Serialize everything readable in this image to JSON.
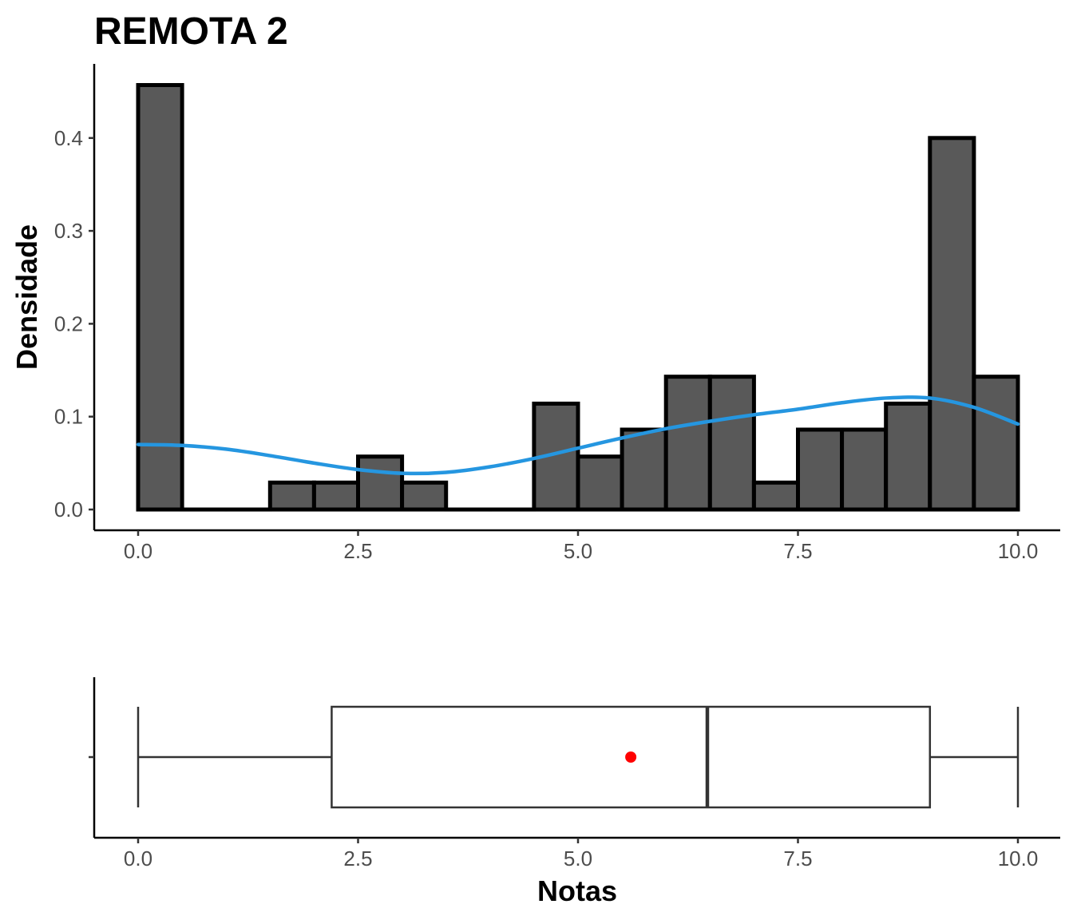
{
  "chart_data": [
    {
      "type": "histogram",
      "title": "REMOTA 2",
      "xlabel": "",
      "ylabel": "Densidade",
      "xlim": [
        -0.5,
        10.5
      ],
      "ylim": [
        0,
        0.47
      ],
      "x_ticks": [
        "0.0",
        "2.5",
        "5.0",
        "7.5",
        "10.0"
      ],
      "y_ticks": [
        "0.0",
        "0.1",
        "0.2",
        "0.3",
        "0.4"
      ],
      "bin_width": 0.5,
      "bin_starts": [
        0.0,
        0.5,
        1.0,
        1.5,
        2.0,
        2.5,
        3.0,
        3.5,
        4.0,
        4.5,
        5.0,
        5.5,
        6.0,
        6.5,
        7.0,
        7.5,
        8.0,
        8.5,
        9.0,
        9.5
      ],
      "densities": [
        0.457,
        0,
        0,
        0.029,
        0.029,
        0.057,
        0.029,
        0,
        0,
        0.114,
        0.057,
        0.086,
        0.143,
        0.143,
        0.029,
        0.086,
        0.086,
        0.114,
        0.4,
        0.143
      ],
      "bar_fill": "#595959",
      "bar_stroke": "#000000",
      "density_curve": {
        "color": "#2596e0",
        "x": [
          0.0,
          0.5,
          1.0,
          1.5,
          2.0,
          2.5,
          3.0,
          3.5,
          4.0,
          4.5,
          5.0,
          5.5,
          6.0,
          6.5,
          7.0,
          7.5,
          8.0,
          8.5,
          9.0,
          9.5,
          10.0
        ],
        "y": [
          0.07,
          0.069,
          0.065,
          0.058,
          0.05,
          0.043,
          0.039,
          0.04,
          0.046,
          0.055,
          0.066,
          0.077,
          0.087,
          0.095,
          0.102,
          0.108,
          0.115,
          0.12,
          0.12,
          0.11,
          0.092
        ]
      }
    },
    {
      "type": "boxplot",
      "xlabel": "Notas",
      "xlim": [
        -0.5,
        10.5
      ],
      "x_ticks": [
        "0.0",
        "2.5",
        "5.0",
        "7.5",
        "10.0"
      ],
      "min": 0.0,
      "q1": 2.2,
      "median": 6.47,
      "q3": 9.0,
      "max": 10.0,
      "mean": 5.6,
      "mean_color": "#ff0000"
    }
  ]
}
